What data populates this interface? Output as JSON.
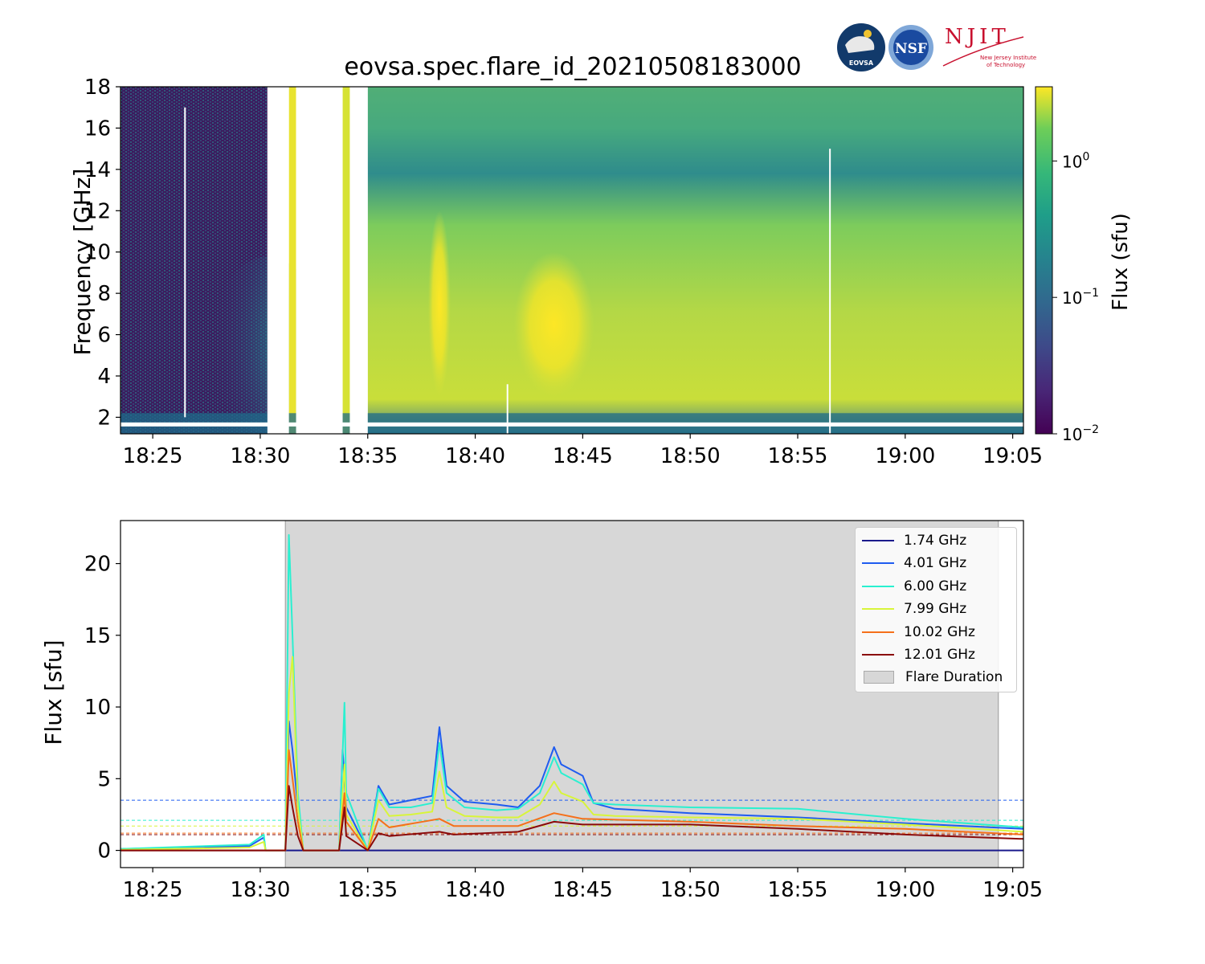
{
  "title": "eovsa.spec.flare_id_20210508183000",
  "logos": {
    "eovsa_text": "EOVSA",
    "nsf_text": "NSF",
    "njit_text": "NJIT",
    "njit_subtitle_1": "New Jersey Institute",
    "njit_subtitle_2": "of Technology"
  },
  "spectrogram": {
    "ylabel": "Frequency [GHz]",
    "colorbar_label": "Flux  (sfu)",
    "colorbar_ticks": [
      {
        "value": 1.0,
        "label": "10",
        "exp": "0"
      },
      {
        "value": 0.1,
        "label": "10",
        "exp": "−1"
      },
      {
        "value": 0.01,
        "label": "10",
        "exp": "−2"
      }
    ],
    "colorbar_range": [
      0.01,
      3.5
    ],
    "colormap": "viridis"
  },
  "chart_data": [
    {
      "type": "heatmap",
      "title": "eovsa.spec.flare_id_20210508183000",
      "xlabel": "",
      "ylabel": "Frequency [GHz]",
      "xlim": [
        "18:23:30",
        "19:05:30"
      ],
      "ylim": [
        1.2,
        18
      ],
      "x_ticks": [
        "18:25",
        "18:30",
        "18:35",
        "18:40",
        "18:45",
        "18:50",
        "18:55",
        "19:00",
        "19:05"
      ],
      "y_ticks": [
        2,
        4,
        6,
        8,
        10,
        12,
        14,
        16,
        18
      ],
      "colorbar": {
        "label": "Flux  (sfu)",
        "scale": "log",
        "range": [
          0.01,
          3.5
        ]
      },
      "data_gaps": [
        [
          "18:30:20",
          "18:31:20"
        ],
        [
          "18:31:40",
          "18:33:50"
        ],
        [
          "18:34:10",
          "18:35:00"
        ]
      ],
      "bright_features": [
        {
          "time": "18:38:20",
          "freq_range": [
            3,
            12
          ]
        },
        {
          "time": "18:43:40",
          "freq_range": [
            3,
            10
          ],
          "peak_freq": 5
        }
      ]
    },
    {
      "type": "line",
      "xlabel": "",
      "ylabel": "Flux [sfu]",
      "xlim": [
        "18:23:30",
        "19:05:30"
      ],
      "ylim": [
        -1.2,
        23
      ],
      "x_ticks": [
        "18:25",
        "18:30",
        "18:35",
        "18:40",
        "18:45",
        "18:50",
        "18:55",
        "19:00",
        "19:05"
      ],
      "y_ticks": [
        0,
        5,
        10,
        15,
        20
      ],
      "shaded_region": {
        "name": "Flare Duration",
        "x": [
          "18:31:10",
          "19:04:20"
        ],
        "color": "#d7d7d7"
      },
      "thresholds": [
        {
          "series": "4.01 GHz",
          "y": 3.5
        },
        {
          "series": "6.00 GHz",
          "y": 2.1
        },
        {
          "series": "7.99 GHz",
          "y": 1.7
        },
        {
          "series": "10.02 GHz",
          "y": 1.2
        },
        {
          "series": "12.01 GHz",
          "y": 1.1
        }
      ],
      "series": [
        {
          "name": "1.74 GHz",
          "color": "#1a1a8c",
          "x": [
            "18:23:30",
            "18:31:10",
            "18:31:15",
            "18:32:00",
            "18:33:40",
            "18:34:00",
            "18:35:00",
            "18:41:20",
            "18:41:30",
            "18:56:30",
            "18:56:40",
            "19:05:30"
          ],
          "y": [
            0,
            0,
            0,
            0,
            0,
            0,
            0,
            0,
            0,
            0,
            0,
            0
          ]
        },
        {
          "name": "4.01 GHz",
          "color": "#1f5cf0",
          "x": [
            "18:23:30",
            "18:29:30",
            "18:30:10",
            "18:30:15",
            "18:31:10",
            "18:31:20",
            "18:31:30",
            "18:31:45",
            "18:32:00",
            "18:33:40",
            "18:33:50",
            "18:34:00",
            "18:35:00",
            "18:35:30",
            "18:36:00",
            "18:37:00",
            "18:38:00",
            "18:38:20",
            "18:38:40",
            "18:39:30",
            "18:41:00",
            "18:42:00",
            "18:43:00",
            "18:43:40",
            "18:44:00",
            "18:45:00",
            "18:45:30",
            "18:46:30",
            "18:50:00",
            "18:55:00",
            "19:00:00",
            "19:05:30"
          ],
          "y": [
            0.1,
            0.3,
            0.9,
            0,
            0,
            9,
            7,
            3,
            0,
            0,
            7,
            3,
            0,
            4.5,
            3.2,
            3.5,
            3.8,
            8.6,
            4.5,
            3.4,
            3.2,
            3.0,
            4.5,
            7.2,
            6.0,
            5.2,
            3.3,
            2.9,
            2.6,
            2.3,
            1.9,
            1.5
          ]
        },
        {
          "name": "6.00 GHz",
          "color": "#2af0d0",
          "x": [
            "18:23:30",
            "18:29:30",
            "18:30:10",
            "18:30:15",
            "18:31:10",
            "18:31:20",
            "18:31:30",
            "18:31:45",
            "18:32:00",
            "18:33:40",
            "18:33:55",
            "18:34:00",
            "18:35:00",
            "18:35:30",
            "18:36:00",
            "18:37:00",
            "18:38:00",
            "18:38:20",
            "18:38:40",
            "18:39:30",
            "18:41:00",
            "18:42:00",
            "18:43:00",
            "18:43:40",
            "18:44:00",
            "18:45:00",
            "18:45:30",
            "18:46:30",
            "18:50:00",
            "18:55:00",
            "19:00:00",
            "19:05:30"
          ],
          "y": [
            0.1,
            0.4,
            1.1,
            0,
            0,
            22,
            15,
            4,
            0,
            0,
            10.3,
            4,
            0,
            4.3,
            3.0,
            3.0,
            3.3,
            7.5,
            4.0,
            3.0,
            2.8,
            2.9,
            4.0,
            6.5,
            5.4,
            4.6,
            3.3,
            3.2,
            3.0,
            2.9,
            2.2,
            1.6
          ]
        },
        {
          "name": "7.99 GHz",
          "color": "#d8f53a",
          "x": [
            "18:23:30",
            "18:29:30",
            "18:30:10",
            "18:30:15",
            "18:31:10",
            "18:31:20",
            "18:31:30",
            "18:31:45",
            "18:32:00",
            "18:33:40",
            "18:33:55",
            "18:34:00",
            "18:35:00",
            "18:35:30",
            "18:36:00",
            "18:37:00",
            "18:38:00",
            "18:38:20",
            "18:38:40",
            "18:39:30",
            "18:41:00",
            "18:42:00",
            "18:43:00",
            "18:43:40",
            "18:44:00",
            "18:45:00",
            "18:45:30",
            "18:46:30",
            "18:50:00",
            "18:55:00",
            "19:00:00",
            "19:05:30"
          ],
          "y": [
            0.05,
            0.2,
            0.6,
            0,
            0,
            11,
            13.5,
            3,
            0,
            0,
            6,
            2.5,
            0,
            3.5,
            2.4,
            2.5,
            2.7,
            5.5,
            3.0,
            2.4,
            2.3,
            2.3,
            3.2,
            4.8,
            4.0,
            3.4,
            2.5,
            2.4,
            2.3,
            2.2,
            1.8,
            1.3
          ]
        },
        {
          "name": "10.02 GHz",
          "color": "#f5701a",
          "x": [
            "18:23:30",
            "18:30:15",
            "18:31:10",
            "18:31:20",
            "18:31:30",
            "18:31:45",
            "18:32:00",
            "18:33:40",
            "18:33:55",
            "18:34:00",
            "18:35:00",
            "18:35:30",
            "18:36:00",
            "18:38:20",
            "18:39:00",
            "18:42:00",
            "18:43:40",
            "18:45:00",
            "18:50:00",
            "18:55:00",
            "19:00:00",
            "19:05:30"
          ],
          "y": [
            0,
            0,
            0,
            7,
            5,
            2,
            0,
            0,
            4,
            2,
            0,
            2.2,
            1.6,
            2.2,
            1.7,
            1.7,
            2.6,
            2.2,
            2.0,
            1.7,
            1.5,
            1.1
          ]
        },
        {
          "name": "12.01 GHz",
          "color": "#8a0a0a",
          "x": [
            "18:23:30",
            "18:30:15",
            "18:31:10",
            "18:31:20",
            "18:31:30",
            "18:31:45",
            "18:32:00",
            "18:33:40",
            "18:33:55",
            "18:34:00",
            "18:35:00",
            "18:35:30",
            "18:36:00",
            "18:38:20",
            "18:39:00",
            "18:42:00",
            "18:43:40",
            "18:45:00",
            "18:50:00",
            "18:55:00",
            "19:00:00",
            "19:05:30"
          ],
          "y": [
            0,
            0,
            0,
            4.5,
            3,
            1,
            0,
            0,
            3,
            1,
            0,
            1.2,
            1.0,
            1.3,
            1.1,
            1.3,
            2.0,
            1.8,
            1.8,
            1.5,
            1.1,
            0.8
          ]
        }
      ],
      "legend": {
        "placement": "top-right",
        "entries": [
          "1.74 GHz",
          "4.01 GHz",
          "6.00 GHz",
          "7.99 GHz",
          "10.02 GHz",
          "12.01 GHz",
          "Flare Duration"
        ]
      }
    }
  ],
  "lightcurve": {
    "ylabel": "Flux [sfu]",
    "legend_items": [
      {
        "label": "1.74 GHz",
        "color": "#1a1a8c"
      },
      {
        "label": "4.01 GHz",
        "color": "#1f5cf0"
      },
      {
        "label": "6.00 GHz",
        "color": "#2af0d0"
      },
      {
        "label": "7.99 GHz",
        "color": "#d8f53a"
      },
      {
        "label": "10.02 GHz",
        "color": "#f5701a"
      },
      {
        "label": "12.01 GHz",
        "color": "#8a0a0a"
      }
    ],
    "shaded_label": "Flare Duration"
  }
}
